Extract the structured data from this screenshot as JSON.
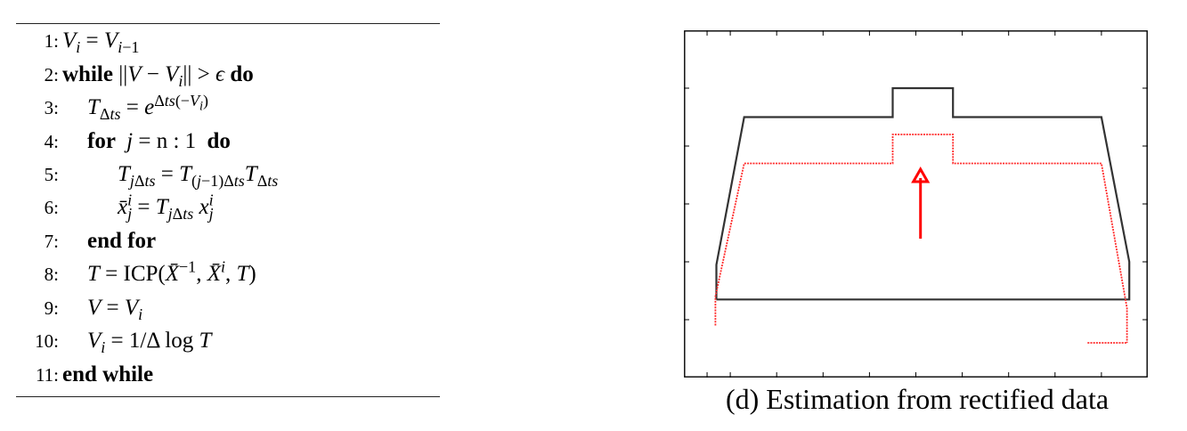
{
  "algorithm": {
    "lines": [
      {
        "num": "1:"
      },
      {
        "num": "2:",
        "kw_while": "while",
        "kw_do": "do"
      },
      {
        "num": "3:"
      },
      {
        "num": "4:",
        "kw_for": "for",
        "loop_range": "n : 1",
        "kw_do": "do"
      },
      {
        "num": "5:"
      },
      {
        "num": "6:"
      },
      {
        "num": "7:",
        "kw_end_for": "end for"
      },
      {
        "num": "8:",
        "icp": "ICP("
      },
      {
        "num": "9:"
      },
      {
        "num": "10:"
      },
      {
        "num": "11:",
        "kw_end_while": "end while"
      }
    ]
  },
  "figure": {
    "caption": "(d) Estimation from rectified data",
    "colors": {
      "black_profile": "#333333",
      "red_profile": "#ff2a2a",
      "arrow": "#ff0000",
      "frame": "#000000"
    },
    "chart_data": {
      "type": "line",
      "title": "",
      "xlabel": "",
      "ylabel": "",
      "xlim": [
        0,
        10
      ],
      "ylim": [
        0,
        6
      ],
      "grid": false,
      "x_ticks": [
        0.5,
        1.0,
        2.0,
        3.0,
        4.0,
        5.0,
        6.0,
        7.0,
        8.0,
        9.0
      ],
      "y_ticks": [
        1,
        2,
        3,
        4,
        5
      ],
      "series": [
        {
          "color": "#333333",
          "style": "solid",
          "x": [
            0.7,
            0.7,
            1.3,
            4.5,
            4.5,
            5.8,
            5.8,
            9.0,
            9.6,
            9.6,
            0.7
          ],
          "y": [
            1.35,
            1.95,
            4.5,
            4.5,
            5.0,
            5.0,
            4.5,
            4.5,
            2.0,
            1.35,
            1.35
          ]
        },
        {
          "color": "#ff2a2a",
          "style": "dotted",
          "x": [
            0.68,
            0.68,
            1.3,
            4.5,
            4.5,
            5.8,
            5.8,
            9.0,
            9.55,
            9.55
          ],
          "y": [
            0.9,
            1.4,
            3.7,
            3.7,
            4.2,
            4.2,
            3.7,
            3.7,
            1.2,
            0.6
          ]
        },
        {
          "color": "#ff2a2a",
          "style": "dotted",
          "x": [
            8.7,
            9.55
          ],
          "y": [
            0.6,
            0.6
          ]
        }
      ],
      "annotations": [
        {
          "type": "arrow",
          "x": 5.1,
          "y_from": 2.4,
          "y_to": 3.6,
          "color": "#ff0000"
        }
      ]
    }
  }
}
